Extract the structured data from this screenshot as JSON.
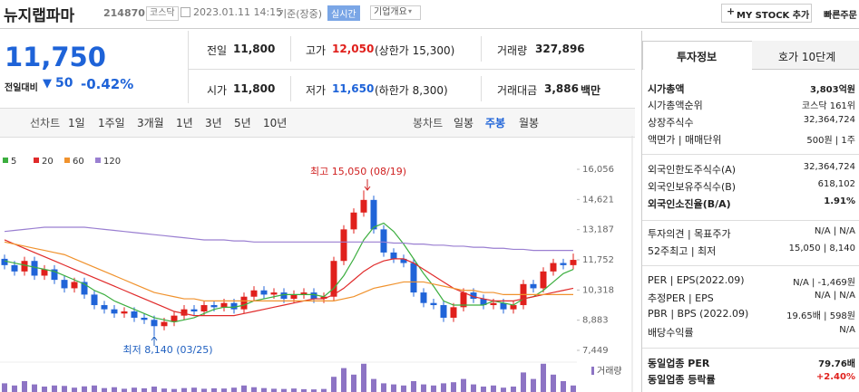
{
  "header": {
    "name": "뉴지랩파마",
    "code": "214870",
    "market": "코스닥",
    "datetime": "2023.01.11 14:15",
    "basis": "기준(장중)",
    "realtime": "실시간",
    "overview": "기업개요",
    "mystock": "MY STOCK 추가",
    "quick_order": "빠른주문"
  },
  "quote": {
    "price": "11,750",
    "change_label": "전일대비",
    "change": "50",
    "rate": "-0.42%",
    "rows": [
      [
        {
          "label": "전일",
          "value": "11,800"
        },
        {
          "label": "고가",
          "value": "12,050",
          "note": "(상한가 15,300)"
        },
        {
          "label": "거래량",
          "value": "327,896"
        }
      ],
      [
        {
          "label": "시가",
          "value": "11,800"
        },
        {
          "label": "저가",
          "value": "11,650",
          "note": "(하한가 8,300)"
        },
        {
          "label": "거래대금",
          "value": "3,886",
          "unit": "백만"
        }
      ]
    ]
  },
  "nav": {
    "line_label": "선차트",
    "line_items": [
      "1일",
      "1주일",
      "3개월",
      "1년",
      "3년",
      "5년",
      "10년"
    ],
    "candle_label": "봉차트",
    "candle_items": [
      "일봉",
      "주봉",
      "월봉"
    ],
    "active": "주봉"
  },
  "chart_data": {
    "type": "candlestick",
    "up_color": "#e0201c",
    "down_color": "#2064d8",
    "ylim": [
      6890,
      16787
    ],
    "yticks": [
      {
        "value": 16056,
        "label": "16,056"
      },
      {
        "value": 14621,
        "label": "14,621"
      },
      {
        "value": 13187,
        "label": "13,187"
      },
      {
        "value": 11752,
        "label": "11,752"
      },
      {
        "value": 10318,
        "label": "10,318"
      },
      {
        "value": 8883,
        "label": "8,883"
      },
      {
        "value": 7449,
        "label": "7,449"
      }
    ],
    "grid": false,
    "annotations": {
      "high": "최고 15,050 (08/19)",
      "low": "최저 8,140 (03/25)"
    },
    "open": [
      11800,
      11500,
      11200,
      11700,
      11000,
      11300,
      10800,
      10400,
      10700,
      10100,
      9600,
      9400,
      9200,
      9300,
      9000,
      8900,
      8600,
      8800,
      9100,
      9400,
      9300,
      9600,
      9500,
      9700,
      9400,
      10000,
      10300,
      10100,
      10200,
      9900,
      10100,
      10200,
      9900,
      10000,
      11700,
      13200,
      14000,
      14600,
      13200,
      12100,
      11800,
      11600,
      10200,
      9700,
      9600,
      9000,
      9500,
      10200,
      9900,
      9600,
      9700,
      9400,
      9600,
      10600,
      10400,
      11200,
      11600,
      11500
    ],
    "high": [
      12000,
      11700,
      11900,
      11900,
      11500,
      11500,
      11000,
      10900,
      10900,
      10300,
      9800,
      9600,
      9500,
      9500,
      9200,
      9100,
      9000,
      9300,
      9600,
      9600,
      9800,
      9800,
      9900,
      9900,
      10200,
      10500,
      10500,
      10400,
      10400,
      10300,
      10400,
      10400,
      10200,
      11900,
      13400,
      14200,
      15050,
      14800,
      13400,
      12300,
      12000,
      11800,
      10400,
      9900,
      9800,
      9700,
      10400,
      10400,
      10100,
      9900,
      9900,
      9800,
      10800,
      10800,
      11400,
      11800,
      11800,
      12050
    ],
    "low": [
      11300,
      11000,
      11000,
      10800,
      10800,
      10600,
      10200,
      10200,
      9900,
      9400,
      9200,
      9000,
      9000,
      8800,
      8700,
      8140,
      8400,
      8600,
      8900,
      9100,
      9100,
      9300,
      9300,
      9200,
      9200,
      9800,
      9900,
      9900,
      9700,
      9700,
      9900,
      9700,
      9700,
      9800,
      11500,
      13000,
      13800,
      13000,
      11900,
      11600,
      11400,
      10000,
      9500,
      9400,
      8800,
      8800,
      9300,
      9700,
      9400,
      9400,
      9200,
      9200,
      9400,
      10200,
      10200,
      11000,
      11300,
      11300
    ],
    "close": [
      11500,
      11200,
      11700,
      11000,
      11300,
      10800,
      10400,
      10700,
      10100,
      9600,
      9400,
      9200,
      9300,
      9000,
      8900,
      8600,
      8800,
      9100,
      9400,
      9300,
      9600,
      9500,
      9700,
      9400,
      10000,
      10300,
      10100,
      10200,
      9900,
      10100,
      10200,
      9900,
      10000,
      11700,
      13200,
      14000,
      14600,
      13200,
      12100,
      11800,
      11600,
      10200,
      9700,
      9600,
      9000,
      9500,
      10200,
      9900,
      9600,
      9700,
      9400,
      9600,
      10600,
      10400,
      11200,
      11600,
      11500,
      11750
    ],
    "series": [
      {
        "name": "5",
        "color": "#3cae3f",
        "values": [
          11700,
          11600,
          11500,
          11400,
          11300,
          11200,
          11000,
          10800,
          10600,
          10300,
          10100,
          9800,
          9600,
          9400,
          9200,
          9000,
          8900,
          8800,
          8900,
          9000,
          9200,
          9400,
          9500,
          9500,
          9600,
          9800,
          9900,
          10000,
          10100,
          10100,
          10100,
          10100,
          10000,
          10400,
          11000,
          11800,
          12700,
          13300,
          13500,
          13100,
          12500,
          11800,
          11100,
          10500,
          9800,
          9600,
          9600,
          9600,
          9600,
          9800,
          9700,
          9600,
          9900,
          10000,
          10300,
          10700,
          11100,
          11300
        ]
      },
      {
        "name": "20",
        "color": "#e02a2a",
        "values": [
          12700,
          12500,
          12300,
          12100,
          11900,
          11700,
          11500,
          11300,
          11100,
          10900,
          10700,
          10500,
          10300,
          10100,
          9900,
          9700,
          9500,
          9300,
          9200,
          9100,
          9100,
          9100,
          9100,
          9100,
          9200,
          9300,
          9400,
          9500,
          9600,
          9700,
          9800,
          9900,
          9900,
          10100,
          10400,
          10800,
          11200,
          11500,
          11700,
          11800,
          11800,
          11600,
          11300,
          11000,
          10700,
          10400,
          10200,
          10000,
          9900,
          9800,
          9800,
          9800,
          9900,
          10000,
          10100,
          10200,
          10300,
          10400
        ]
      },
      {
        "name": "60",
        "color": "#f0922d",
        "values": [
          12600,
          12500,
          12400,
          12300,
          12200,
          12100,
          12000,
          11800,
          11600,
          11400,
          11200,
          11000,
          10800,
          10600,
          10400,
          10200,
          10100,
          10000,
          9900,
          9900,
          9800,
          9800,
          9800,
          9800,
          9800,
          9800,
          9800,
          9800,
          9800,
          9800,
          9800,
          9800,
          9800,
          9800,
          9900,
          10000,
          10200,
          10400,
          10500,
          10600,
          10700,
          10700,
          10700,
          10600,
          10500,
          10400,
          10300,
          10300,
          10200,
          10200,
          10100,
          10100,
          10100,
          10100,
          10100,
          10100,
          10100,
          10100
        ]
      },
      {
        "name": "120",
        "color": "#9a7fd1",
        "values": [
          13100,
          13150,
          13200,
          13250,
          13300,
          13300,
          13300,
          13300,
          13300,
          13250,
          13200,
          13150,
          13100,
          13050,
          13000,
          12950,
          12900,
          12850,
          12800,
          12750,
          12700,
          12700,
          12700,
          12650,
          12650,
          12600,
          12600,
          12600,
          12600,
          12600,
          12600,
          12600,
          12600,
          12600,
          12600,
          12600,
          12600,
          12600,
          12600,
          12550,
          12550,
          12500,
          12500,
          12450,
          12450,
          12400,
          12400,
          12350,
          12350,
          12300,
          12300,
          12250,
          12250,
          12200,
          12200,
          12200,
          12200,
          12200
        ]
      }
    ],
    "volume": {
      "label": "거래량",
      "color": "#8d74c4",
      "ylim": [
        0,
        1500000
      ],
      "values": [
        400000,
        300000,
        500000,
        350000,
        250000,
        300000,
        280000,
        200000,
        260000,
        300000,
        180000,
        220000,
        150000,
        200000,
        170000,
        250000,
        160000,
        140000,
        180000,
        200000,
        150000,
        170000,
        160000,
        200000,
        300000,
        220000,
        180000,
        150000,
        140000,
        160000,
        130000,
        120000,
        140000,
        700000,
        1100000,
        800000,
        1300000,
        600000,
        400000,
        350000,
        300000,
        500000,
        350000,
        300000,
        400000,
        450000,
        600000,
        350000,
        250000,
        300000,
        200000,
        250000,
        900000,
        600000,
        1300000,
        800000,
        500000,
        300000
      ]
    }
  },
  "sidebar": {
    "tabs": [
      "투자정보",
      "호가 10단계"
    ],
    "rows": [
      {
        "label": "시가총액",
        "value": "3,803억원"
      },
      {
        "label": "시가총액순위",
        "value": "코스닥 161위"
      },
      {
        "label": "상장주식수",
        "value": "32,364,724"
      },
      {
        "label": "액면가 | 매매단위",
        "value": "500원 | 1주"
      },
      {
        "label": "외국인한도주식수(A)",
        "value": "32,364,724"
      },
      {
        "label": "외국인보유주식수(B)",
        "value": "618,102"
      },
      {
        "label": "외국인소진율(B/A)",
        "value": "1.91%"
      },
      {
        "label": "투자의견 | 목표주가",
        "value": "N/A | N/A"
      },
      {
        "label": "52주최고 | 최저",
        "value": "15,050 | 8,140"
      },
      {
        "label": "PER | EPS(2022.09)",
        "value": "N/A | -1,469원"
      },
      {
        "label": "추정PER | EPS",
        "value": "N/A | N/A"
      },
      {
        "label": "PBR | BPS (2022.09)",
        "value": "19.65배 | 598원"
      },
      {
        "label": "배당수익률",
        "value": "N/A"
      },
      {
        "label": "동일업종 PER",
        "value": "79.76배"
      },
      {
        "label": "동일업종 등락률",
        "value": "+2.40%"
      }
    ]
  }
}
